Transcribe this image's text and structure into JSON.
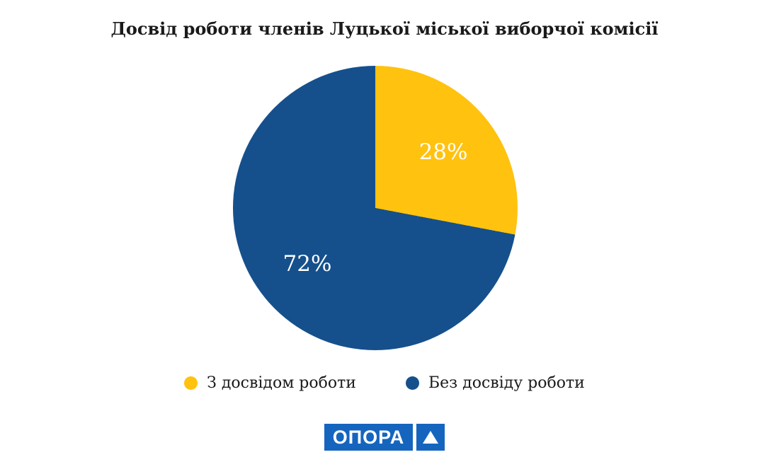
{
  "chart_data": {
    "type": "pie",
    "title": "Досвід роботи членів Луцької міської виборчої комісії",
    "labels": [
      "З досвідом роботи",
      "Без досвіду роботи"
    ],
    "values": [
      28,
      72
    ],
    "value_suffix": "%",
    "colors": [
      "#FFC20E",
      "#15508C"
    ],
    "start_angle_deg": 0,
    "direction": "clockwise",
    "legend_position": "bottom",
    "value_label_color": "#ffffff"
  },
  "logo": {
    "text": "ОПОРА",
    "triangle_icon": "▲",
    "brand_color": "#1565BE"
  }
}
